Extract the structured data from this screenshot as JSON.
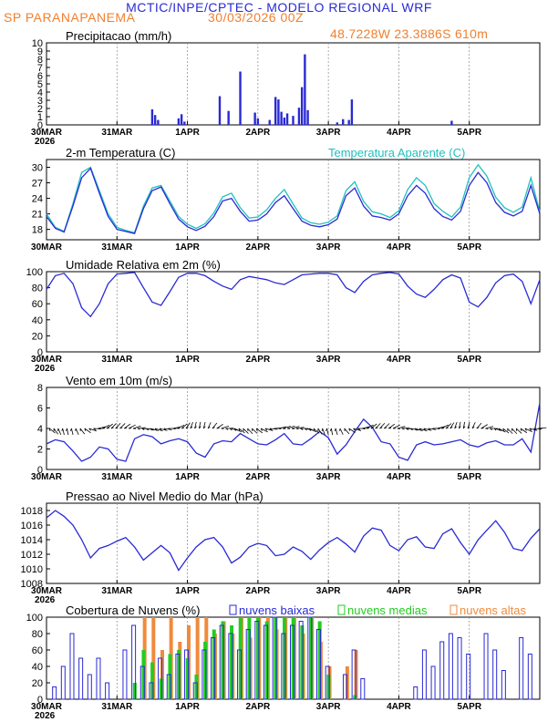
{
  "header": {
    "title": "MCTIC/INPE/CPTEC - MODELO REGIONAL WRF",
    "location": "SP PARANAPANEMA",
    "run_date": "30/03/2026 00Z",
    "coordinates": "48.7228W 23.3886S 610m"
  },
  "colors": {
    "blue": "#2a2ad4",
    "cyan": "#20c0c0",
    "green": "#22cc22",
    "orange": "#f08a3c",
    "title": "#2a2ad4",
    "accent": "#f08030"
  },
  "x_axis": {
    "days": [
      "30MAR",
      "31MAR",
      "1APR",
      "2APR",
      "3APR",
      "4APR",
      "5APR"
    ],
    "year": "2026",
    "hours": [
      0,
      24,
      48,
      72,
      96,
      120,
      144
    ],
    "range": [
      0,
      168
    ]
  },
  "chart_data": [
    {
      "id": "precip",
      "type": "bar",
      "title": "Precipitacao (mm/h)",
      "ylim": [
        0,
        10
      ],
      "yticks": [
        "0",
        "1",
        "2",
        "3",
        "4",
        "5",
        "6",
        "7",
        "8",
        "9",
        "10"
      ],
      "x_hours": [
        36,
        37,
        38,
        45,
        46,
        47,
        59,
        62,
        66,
        71,
        72,
        76,
        78,
        79,
        80,
        81,
        82,
        84,
        86,
        87,
        88,
        89,
        99,
        101,
        103,
        104,
        138
      ],
      "values": [
        1.9,
        1.2,
        0.6,
        0.8,
        1.3,
        0.4,
        3.5,
        1.7,
        6.5,
        1.5,
        0.8,
        0.6,
        3.4,
        3.1,
        1.6,
        0.9,
        1.4,
        1.1,
        2.1,
        4.6,
        8.6,
        1.8,
        0.3,
        0.7,
        0.6,
        3.1,
        0.5
      ]
    },
    {
      "id": "temp",
      "type": "line",
      "title": "2-m Temperatura (C)",
      "legend": "Temperatura Aparente (C)",
      "ylim": [
        16,
        31.5
      ],
      "yticks": [
        "18",
        "21",
        "24",
        "27",
        "30"
      ],
      "x_hours": [
        0,
        3,
        6,
        9,
        12,
        15,
        18,
        21,
        24,
        27,
        30,
        33,
        36,
        39,
        42,
        45,
        48,
        51,
        54,
        57,
        60,
        63,
        66,
        69,
        72,
        75,
        78,
        81,
        84,
        87,
        90,
        93,
        96,
        99,
        102,
        105,
        108,
        111,
        114,
        117,
        120,
        123,
        126,
        129,
        132,
        135,
        138,
        141,
        144,
        147,
        150,
        153,
        156,
        159,
        162,
        165,
        168
      ],
      "series": [
        {
          "name": "2-m Temperatura",
          "values": [
            20.5,
            18.2,
            17.5,
            22.5,
            28.0,
            29.8,
            25.0,
            20.5,
            18.0,
            17.6,
            17.2,
            22.0,
            25.5,
            26.2,
            23.0,
            20.0,
            18.5,
            17.8,
            18.6,
            20.5,
            23.5,
            24.0,
            21.5,
            19.6,
            19.8,
            21.0,
            23.2,
            24.5,
            22.0,
            19.6,
            18.8,
            18.5,
            18.9,
            20.0,
            24.5,
            26.0,
            22.5,
            20.6,
            20.3,
            19.8,
            21.0,
            24.5,
            26.5,
            25.0,
            22.0,
            20.5,
            19.8,
            21.5,
            26.5,
            29.0,
            27.0,
            23.2,
            21.3,
            20.6,
            21.5,
            26.5,
            21.0
          ]
        },
        {
          "name": "Temperatura Aparente",
          "values": [
            21.0,
            18.4,
            17.6,
            23.0,
            29.0,
            30.0,
            25.5,
            21.0,
            18.4,
            17.8,
            17.4,
            22.5,
            26.0,
            26.5,
            23.5,
            20.5,
            19.0,
            18.2,
            19.1,
            21.2,
            24.3,
            25.0,
            22.2,
            20.2,
            20.4,
            21.8,
            24.0,
            25.7,
            22.9,
            20.2,
            19.3,
            19.0,
            19.4,
            20.6,
            25.5,
            27.2,
            23.4,
            21.4,
            21.0,
            20.3,
            21.6,
            25.7,
            28.0,
            26.5,
            23.0,
            21.5,
            20.4,
            22.3,
            28.0,
            30.5,
            28.3,
            24.2,
            22.2,
            21.3,
            22.3,
            28.0,
            21.4
          ]
        }
      ]
    },
    {
      "id": "rh",
      "type": "line",
      "title": "Umidade Relativa em 2m (%)",
      "ylim": [
        0,
        100
      ],
      "yticks": [
        "0",
        "20",
        "40",
        "60",
        "80",
        "100"
      ],
      "x_hours": [
        0,
        3,
        6,
        9,
        12,
        15,
        18,
        21,
        24,
        27,
        30,
        33,
        36,
        39,
        42,
        45,
        48,
        51,
        54,
        57,
        60,
        63,
        66,
        69,
        72,
        75,
        78,
        81,
        84,
        87,
        90,
        93,
        96,
        99,
        102,
        105,
        108,
        111,
        114,
        117,
        120,
        123,
        126,
        129,
        132,
        135,
        138,
        141,
        144,
        147,
        150,
        153,
        156,
        159,
        162,
        165,
        168
      ],
      "series": [
        {
          "name": "Umidade Relativa",
          "values": [
            78,
            95,
            98,
            85,
            55,
            44,
            60,
            85,
            97,
            98,
            99,
            80,
            62,
            58,
            75,
            93,
            98,
            98,
            95,
            88,
            82,
            78,
            90,
            94,
            92,
            90,
            86,
            84,
            90,
            96,
            97,
            98,
            98,
            96,
            80,
            74,
            88,
            96,
            98,
            99,
            97,
            82,
            72,
            68,
            78,
            90,
            96,
            92,
            62,
            56,
            68,
            86,
            95,
            97,
            88,
            60,
            90
          ]
        }
      ]
    },
    {
      "id": "wind",
      "type": "line",
      "title": "Vento em 10m (m/s)",
      "ylim": [
        0,
        8
      ],
      "yticks": [
        "0",
        "2",
        "4",
        "6",
        "8"
      ],
      "x_hours": [
        0,
        3,
        6,
        9,
        12,
        15,
        18,
        21,
        24,
        27,
        30,
        33,
        36,
        39,
        42,
        45,
        48,
        51,
        54,
        57,
        60,
        63,
        66,
        69,
        72,
        75,
        78,
        81,
        84,
        87,
        90,
        93,
        96,
        99,
        102,
        105,
        108,
        111,
        114,
        117,
        120,
        123,
        126,
        129,
        132,
        135,
        138,
        141,
        144,
        147,
        150,
        153,
        156,
        159,
        162,
        165,
        168
      ],
      "series": [
        {
          "name": "Vento em 10m",
          "values": [
            2.5,
            2.9,
            2.7,
            1.8,
            0.8,
            1.2,
            2.2,
            2.0,
            1.0,
            0.8,
            3.0,
            3.4,
            3.2,
            2.5,
            2.8,
            3.0,
            2.7,
            1.6,
            1.2,
            2.5,
            2.8,
            2.7,
            3.5,
            3.0,
            2.5,
            2.4,
            2.9,
            3.5,
            2.5,
            2.4,
            3.0,
            3.7,
            3.1,
            1.5,
            2.4,
            3.7,
            4.9,
            4.1,
            2.7,
            2.5,
            1.2,
            0.9,
            2.4,
            2.7,
            2.4,
            2.5,
            2.7,
            2.9,
            2.4,
            2.2,
            2.6,
            2.8,
            2.4,
            2.4,
            3.0,
            1.7,
            6.5
          ]
        }
      ]
    },
    {
      "id": "pressure",
      "type": "line",
      "title": "Pressao ao Nivel Medio do Mar (hPa)",
      "ylim": [
        1008,
        1019
      ],
      "yticks": [
        "1008",
        "1010",
        "1012",
        "1014",
        "1016",
        "1018"
      ],
      "x_hours": [
        0,
        3,
        6,
        9,
        12,
        15,
        18,
        21,
        24,
        27,
        30,
        33,
        36,
        39,
        42,
        45,
        48,
        51,
        54,
        57,
        60,
        63,
        66,
        69,
        72,
        75,
        78,
        81,
        84,
        87,
        90,
        93,
        96,
        99,
        102,
        105,
        108,
        111,
        114,
        117,
        120,
        123,
        126,
        129,
        132,
        135,
        138,
        141,
        144,
        147,
        150,
        153,
        156,
        159,
        162,
        165,
        168
      ],
      "series": [
        {
          "name": "Pressao",
          "values": [
            1017.0,
            1018.0,
            1017.2,
            1016.0,
            1014.0,
            1011.5,
            1012.8,
            1013.2,
            1013.8,
            1014.3,
            1013.0,
            1011.2,
            1012.2,
            1013.2,
            1012.2,
            1009.8,
            1011.5,
            1013.0,
            1014.0,
            1014.3,
            1013.0,
            1010.8,
            1011.6,
            1013.0,
            1013.5,
            1013.2,
            1011.8,
            1012.0,
            1013.0,
            1012.4,
            1011.3,
            1012.6,
            1013.6,
            1014.3,
            1013.4,
            1012.3,
            1014.5,
            1015.6,
            1015.3,
            1013.2,
            1012.5,
            1014.0,
            1014.4,
            1013.0,
            1012.8,
            1014.8,
            1015.5,
            1013.6,
            1012.0,
            1014.0,
            1015.3,
            1016.6,
            1015.0,
            1012.8,
            1012.5,
            1014.2,
            1015.5
          ]
        }
      ]
    },
    {
      "id": "clouds",
      "type": "bar",
      "title": "Cobertura de Nuvens (%)",
      "legend": [
        "nuvens baixas",
        "nuvens medias",
        "nuvens altas"
      ],
      "ylim": [
        0,
        100
      ],
      "yticks": [
        "0",
        "20",
        "40",
        "60",
        "80",
        "100"
      ],
      "x_hours": [
        0,
        3,
        6,
        9,
        12,
        15,
        18,
        21,
        24,
        27,
        30,
        33,
        36,
        39,
        42,
        45,
        48,
        51,
        54,
        57,
        60,
        63,
        66,
        69,
        72,
        75,
        78,
        81,
        84,
        87,
        90,
        93,
        96,
        99,
        102,
        105,
        108,
        111,
        114,
        117,
        120,
        123,
        126,
        129,
        132,
        135,
        138,
        141,
        144,
        147,
        150,
        153,
        156,
        159,
        162,
        165,
        168
      ],
      "series": [
        {
          "name": "nuvens baixas",
          "values": [
            0,
            15,
            40,
            80,
            50,
            30,
            50,
            20,
            0,
            60,
            90,
            40,
            20,
            50,
            30,
            55,
            60,
            20,
            60,
            75,
            90,
            80,
            60,
            85,
            95,
            90,
            100,
            80,
            90,
            95,
            100,
            85,
            40,
            0,
            30,
            60,
            25,
            0,
            0,
            0,
            0,
            0,
            15,
            60,
            40,
            70,
            80,
            75,
            55,
            0,
            80,
            60,
            35,
            0,
            75,
            55,
            0
          ]
        },
        {
          "name": "nuvens medias",
          "values": [
            0,
            0,
            0,
            0,
            0,
            0,
            0,
            0,
            0,
            0,
            20,
            60,
            45,
            25,
            55,
            60,
            50,
            30,
            70,
            85,
            95,
            90,
            100,
            100,
            100,
            95,
            100,
            100,
            100,
            90,
            100,
            95,
            30,
            0,
            0,
            5,
            0,
            0,
            0,
            0,
            0,
            0,
            0,
            0,
            0,
            0,
            0,
            0,
            0,
            0,
            0,
            0,
            0,
            0,
            0,
            0,
            0
          ]
        },
        {
          "name": "nuvens altas",
          "values": [
            0,
            0,
            0,
            0,
            0,
            0,
            0,
            0,
            0,
            0,
            0,
            100,
            100,
            60,
            100,
            70,
            90,
            100,
            100,
            80,
            95,
            80,
            100,
            75,
            100,
            100,
            85,
            100,
            100,
            80,
            100,
            70,
            40,
            0,
            40,
            60,
            0,
            0,
            0,
            0,
            0,
            0,
            0,
            0,
            0,
            0,
            0,
            0,
            0,
            0,
            0,
            0,
            0,
            0,
            0,
            0,
            0
          ]
        }
      ]
    }
  ]
}
